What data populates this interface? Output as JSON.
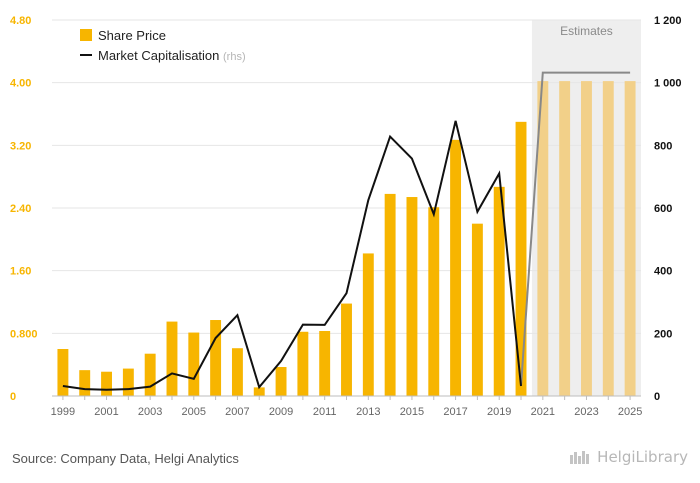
{
  "chart_data": {
    "type": "bar+line",
    "title": "",
    "xlabel": "",
    "ylabel": "",
    "x": [
      1999,
      2000,
      2001,
      2002,
      2003,
      2004,
      2005,
      2006,
      2007,
      2008,
      2009,
      2010,
      2011,
      2012,
      2013,
      2014,
      2015,
      2016,
      2017,
      2018,
      2019,
      2020,
      2021,
      2022,
      2023,
      2024,
      2025
    ],
    "x_tick_labels": [
      "1999",
      "2001",
      "2003",
      "2005",
      "2007",
      "2009",
      "2011",
      "2013",
      "2015",
      "2017",
      "2019",
      "2021",
      "2023",
      "2025"
    ],
    "y_left": {
      "min": 0,
      "max": 4.8,
      "ticks": [
        0,
        0.8,
        1.6,
        2.4,
        3.2,
        4.0,
        4.8
      ],
      "tick_labels": [
        "0",
        "0.800",
        "1.60",
        "2.40",
        "3.20",
        "4.00",
        "4.80"
      ]
    },
    "y_right": {
      "min": 0,
      "max": 1200,
      "ticks": [
        0,
        200,
        400,
        600,
        800,
        1000,
        1200
      ],
      "tick_labels": [
        "0",
        "200",
        "400",
        "600",
        "800",
        "1 000",
        "1 200"
      ]
    },
    "series": [
      {
        "name": "Share Price",
        "kind": "bar",
        "axis": "left",
        "values": [
          0.6,
          0.33,
          0.31,
          0.35,
          0.54,
          0.95,
          0.81,
          0.97,
          0.61,
          0.11,
          0.37,
          0.82,
          0.83,
          1.18,
          1.82,
          2.58,
          2.54,
          2.41,
          3.27,
          2.2,
          2.67,
          3.5,
          4.02,
          4.02,
          4.02,
          4.02,
          4.02
        ],
        "color": "#F7B500",
        "estimate_color": "#F2D089"
      },
      {
        "name": "Market Capitalisation",
        "name_suffix": "(rhs)",
        "kind": "line",
        "axis": "right",
        "values": [
          32,
          22,
          20,
          22,
          30,
          72,
          55,
          185,
          258,
          28,
          112,
          228,
          227,
          328,
          625,
          828,
          758,
          580,
          878,
          588,
          710,
          32,
          1032,
          1032,
          1032,
          1032,
          1032
        ],
        "color": "#111111",
        "estimate_color": "#888888"
      }
    ],
    "estimates": {
      "label": "Estimates",
      "from_year": 2021,
      "shade": "#EEEEEE"
    },
    "legend_position": "top-left",
    "grid": true
  },
  "source_text": "Source: Company Data, Helgi Analytics",
  "brand_text": "HelgiLibrary",
  "accent_color": "#F7B500",
  "left_axis_color": "#F7B500",
  "right_axis_color": "#111111"
}
